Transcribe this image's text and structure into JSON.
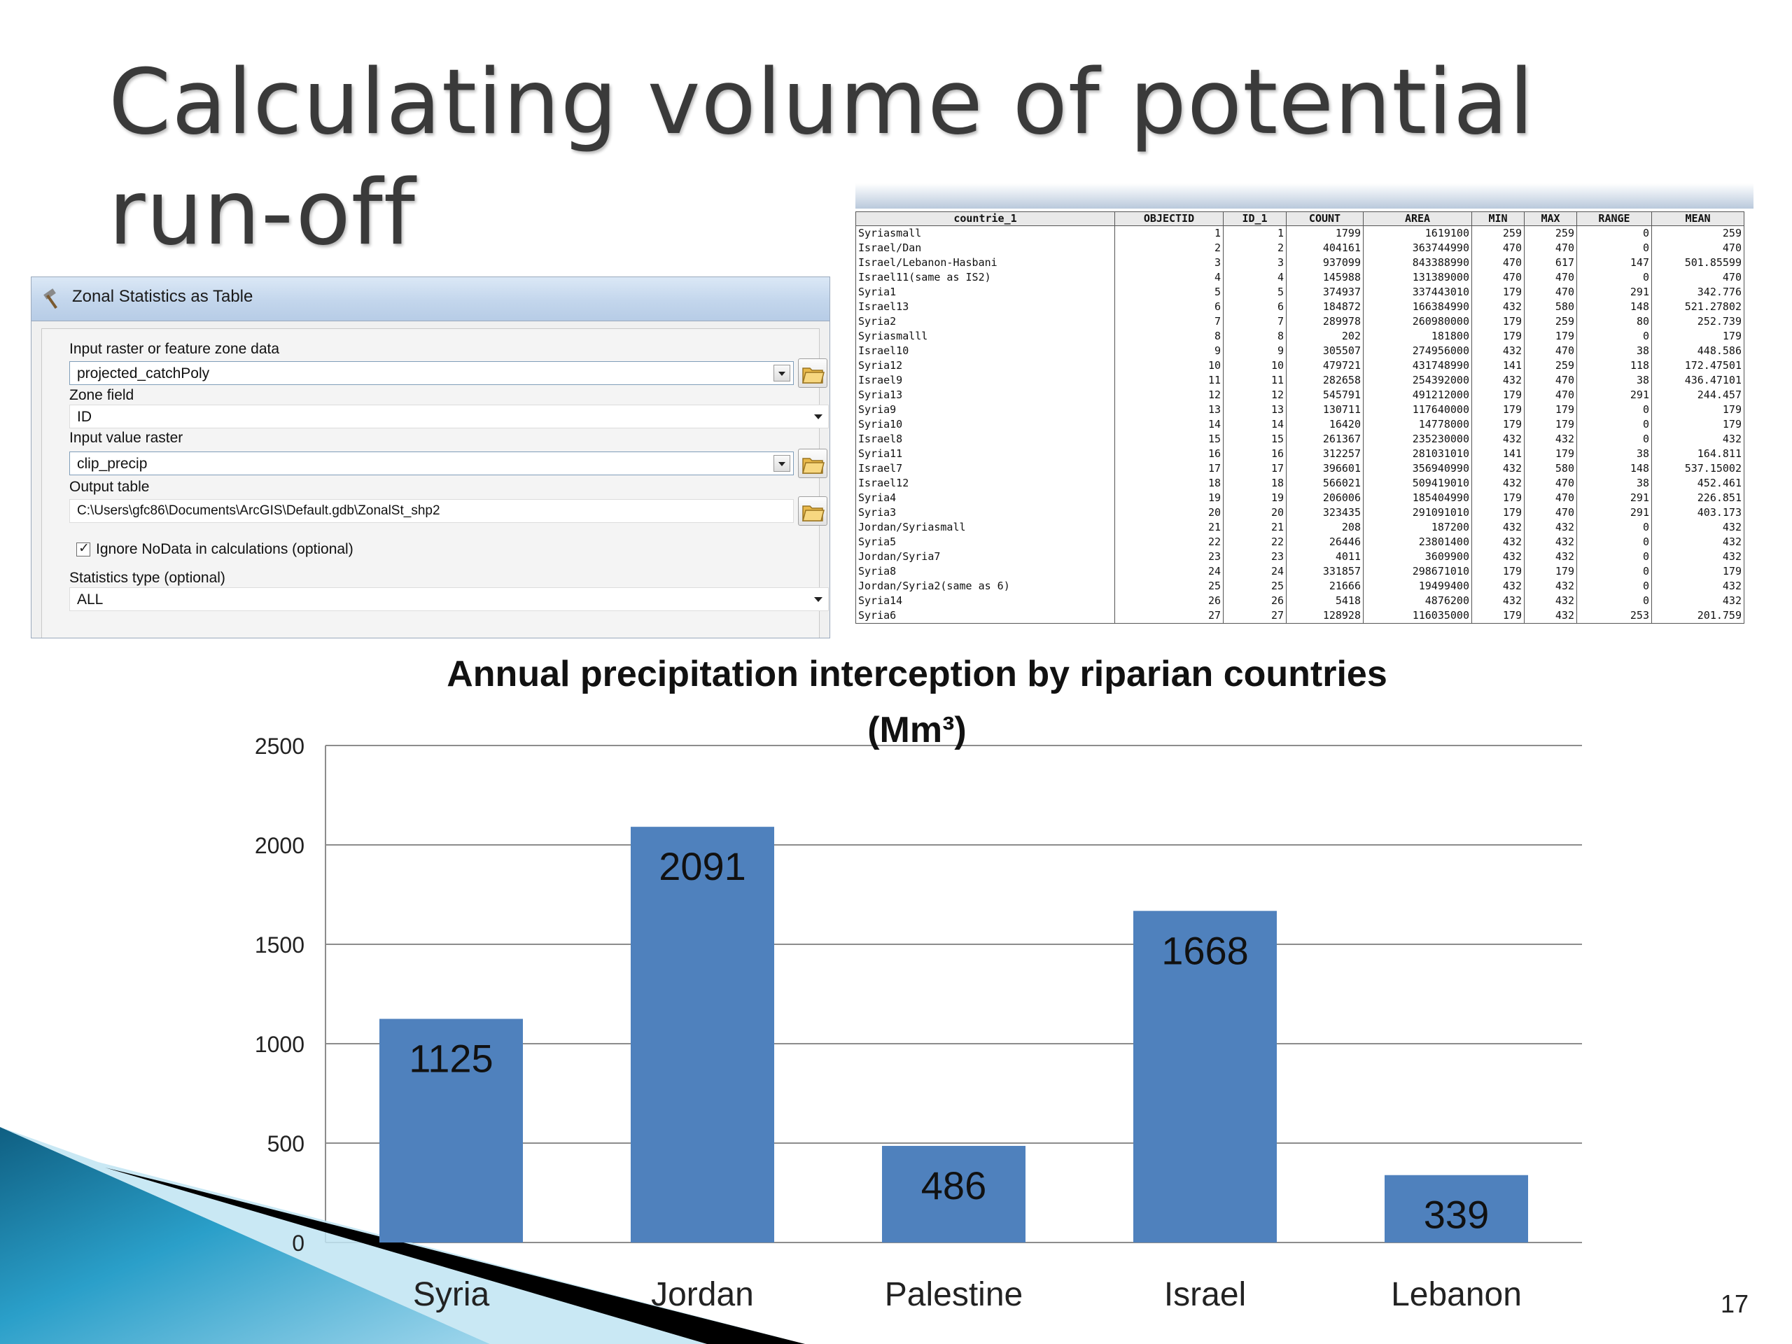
{
  "slide": {
    "title_line1": "Calculating volume of potential",
    "title_line2": "run-off",
    "page_number": "17"
  },
  "dialog": {
    "title": "Zonal Statistics as Table",
    "input_zone_label": "Input raster or feature zone data",
    "input_zone_value": "projected_catchPoly",
    "zone_field_label": "Zone field",
    "zone_field_value": "ID",
    "value_raster_label": "Input value raster",
    "value_raster_value": "clip_precip",
    "output_table_label": "Output table",
    "output_table_value": "C:\\Users\\gfc86\\Documents\\ArcGIS\\Default.gdb\\ZonalSt_shp2",
    "ignore_nodata_label": "Ignore NoData in calculations (optional)",
    "ignore_nodata_checked": true,
    "stats_type_label": "Statistics type (optional)",
    "stats_type_value": "ALL"
  },
  "attribute_table": {
    "columns": [
      "countrie_1",
      "OBJECTID",
      "ID_1",
      "COUNT",
      "AREA",
      "MIN",
      "MAX",
      "RANGE",
      "MEAN"
    ],
    "rows": [
      [
        "Syriasmall",
        "1",
        "1",
        "1799",
        "1619100",
        "259",
        "259",
        "0",
        "259"
      ],
      [
        "Israel/Dan",
        "2",
        "2",
        "404161",
        "363744990",
        "470",
        "470",
        "0",
        "470"
      ],
      [
        "Israel/Lebanon-Hasbani",
        "3",
        "3",
        "937099",
        "843388990",
        "470",
        "617",
        "147",
        "501.85599"
      ],
      [
        "Israel11(same as IS2)",
        "4",
        "4",
        "145988",
        "131389000",
        "470",
        "470",
        "0",
        "470"
      ],
      [
        "Syria1",
        "5",
        "5",
        "374937",
        "337443010",
        "179",
        "470",
        "291",
        "342.776"
      ],
      [
        "Israel13",
        "6",
        "6",
        "184872",
        "166384990",
        "432",
        "580",
        "148",
        "521.27802"
      ],
      [
        "Syria2",
        "7",
        "7",
        "289978",
        "260980000",
        "179",
        "259",
        "80",
        "252.739"
      ],
      [
        "Syriasmalll",
        "8",
        "8",
        "202",
        "181800",
        "179",
        "179",
        "0",
        "179"
      ],
      [
        "Israel10",
        "9",
        "9",
        "305507",
        "274956000",
        "432",
        "470",
        "38",
        "448.586"
      ],
      [
        "Syria12",
        "10",
        "10",
        "479721",
        "431748990",
        "141",
        "259",
        "118",
        "172.47501"
      ],
      [
        "Israel9",
        "11",
        "11",
        "282658",
        "254392000",
        "432",
        "470",
        "38",
        "436.47101"
      ],
      [
        "Syria13",
        "12",
        "12",
        "545791",
        "491212000",
        "179",
        "470",
        "291",
        "244.457"
      ],
      [
        "Syria9",
        "13",
        "13",
        "130711",
        "117640000",
        "179",
        "179",
        "0",
        "179"
      ],
      [
        "Syria10",
        "14",
        "14",
        "16420",
        "14778000",
        "179",
        "179",
        "0",
        "179"
      ],
      [
        "Israel8",
        "15",
        "15",
        "261367",
        "235230000",
        "432",
        "432",
        "0",
        "432"
      ],
      [
        "Syria11",
        "16",
        "16",
        "312257",
        "281031010",
        "141",
        "179",
        "38",
        "164.811"
      ],
      [
        "Israel7",
        "17",
        "17",
        "396601",
        "356940990",
        "432",
        "580",
        "148",
        "537.15002"
      ],
      [
        "Israel12",
        "18",
        "18",
        "566021",
        "509419010",
        "432",
        "470",
        "38",
        "452.461"
      ],
      [
        "Syria4",
        "19",
        "19",
        "206006",
        "185404990",
        "179",
        "470",
        "291",
        "226.851"
      ],
      [
        "Syria3",
        "20",
        "20",
        "323435",
        "291091010",
        "179",
        "470",
        "291",
        "403.173"
      ],
      [
        "Jordan/Syriasmall",
        "21",
        "21",
        "208",
        "187200",
        "432",
        "432",
        "0",
        "432"
      ],
      [
        "Syria5",
        "22",
        "22",
        "26446",
        "23801400",
        "432",
        "432",
        "0",
        "432"
      ],
      [
        "Jordan/Syria7",
        "23",
        "23",
        "4011",
        "3609900",
        "432",
        "432",
        "0",
        "432"
      ],
      [
        "Syria8",
        "24",
        "24",
        "331857",
        "298671010",
        "179",
        "179",
        "0",
        "179"
      ],
      [
        "Jordan/Syria2(same as 6)",
        "25",
        "25",
        "21666",
        "19499400",
        "432",
        "432",
        "0",
        "432"
      ],
      [
        "Syria14",
        "26",
        "26",
        "5418",
        "4876200",
        "432",
        "432",
        "0",
        "432"
      ],
      [
        "Syria6",
        "27",
        "27",
        "128928",
        "116035000",
        "179",
        "432",
        "253",
        "201.759"
      ]
    ]
  },
  "chart_data": {
    "type": "bar",
    "title": "Annual precipitation interception by riparian countries",
    "title_unit": "(Mm³)",
    "categories": [
      "Syria",
      "Jordan",
      "Palestine",
      "Israel",
      "Lebanon"
    ],
    "values": [
      1125,
      2091,
      486,
      1668,
      339
    ],
    "data_labels": [
      "1125",
      "2091",
      "486",
      "1668",
      "339"
    ],
    "ylim": [
      0,
      2500
    ],
    "yticks": [
      0,
      500,
      1000,
      1500,
      2000,
      2500
    ],
    "grid": true,
    "bar_color": "#4f81bd",
    "xlabel": "",
    "ylabel": ""
  },
  "colors": {
    "title_text": "#3a3a3a",
    "bar": "#4f81bd",
    "corner_accent_1": "#1f7fa8",
    "corner_accent_2": "#000000"
  }
}
